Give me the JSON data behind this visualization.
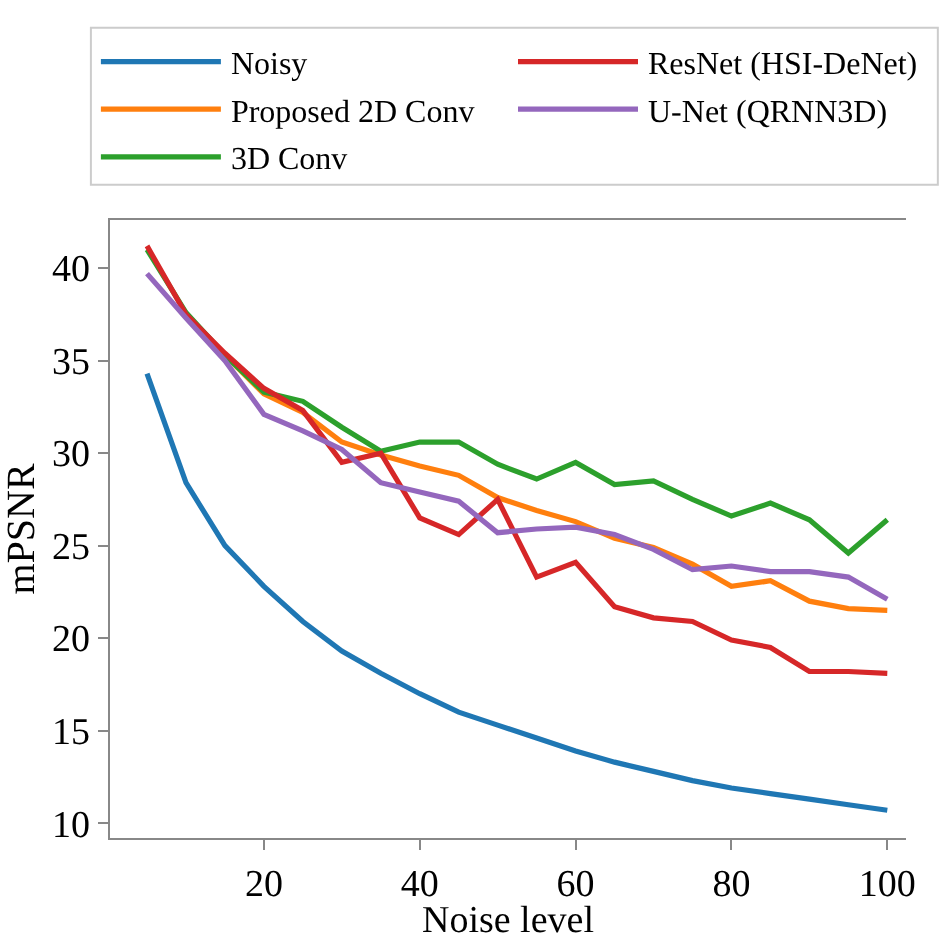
{
  "chart_data": {
    "type": "line",
    "xlabel": "Noise level",
    "ylabel": "mPSNR",
    "x": [
      5,
      10,
      15,
      20,
      25,
      30,
      35,
      40,
      45,
      50,
      55,
      60,
      65,
      70,
      75,
      80,
      85,
      90,
      95,
      100
    ],
    "xlim": [
      0.25,
      102.4
    ],
    "xticks": [
      20,
      40,
      60,
      80,
      100
    ],
    "ylim": [
      9.2,
      42.6
    ],
    "yticks": [
      10,
      15,
      20,
      25,
      30,
      35,
      40
    ],
    "grid": false,
    "legend": "top",
    "marker": "none",
    "line_style": "solid",
    "series": [
      {
        "name": "Noisy",
        "color": "#1f77b4",
        "values": [
          34.3,
          28.4,
          25.0,
          22.8,
          20.9,
          19.3,
          18.1,
          17.0,
          16.0,
          15.3,
          14.6,
          13.9,
          13.3,
          12.8,
          12.3,
          11.9,
          11.6,
          11.3,
          11.0,
          10.7
        ]
      },
      {
        "name": "Proposed 2D Conv",
        "color": "#ff7f0e",
        "values": [
          null,
          null,
          35.3,
          33.2,
          32.2,
          30.6,
          29.9,
          29.3,
          28.8,
          27.6,
          26.9,
          26.3,
          25.4,
          24.9,
          24.0,
          22.8,
          23.1,
          22.0,
          21.6,
          21.5
        ]
      },
      {
        "name": "3D Conv",
        "color": "#2ca02c",
        "values": [
          41.0,
          37.6,
          35.3,
          33.3,
          32.8,
          31.4,
          30.1,
          30.6,
          30.6,
          29.4,
          28.6,
          29.5,
          28.3,
          28.5,
          27.5,
          26.6,
          27.3,
          26.4,
          24.6,
          26.4
        ]
      },
      {
        "name": "ResNet (HSI-DeNet)",
        "color": "#d62728",
        "values": [
          41.2,
          37.5,
          35.4,
          33.5,
          32.3,
          29.5,
          30.0,
          26.5,
          25.6,
          27.5,
          23.3,
          24.1,
          21.7,
          21.1,
          20.9,
          19.9,
          19.5,
          18.2,
          18.2,
          18.1
        ]
      },
      {
        "name": "U-Net (QRNN3D)",
        "color": "#9467bd",
        "values": [
          39.7,
          37.3,
          35.0,
          32.1,
          31.2,
          30.2,
          28.4,
          27.9,
          27.4,
          25.7,
          25.9,
          26.0,
          25.6,
          24.8,
          23.7,
          23.9,
          23.6,
          23.6,
          23.3,
          22.1
        ]
      }
    ]
  }
}
